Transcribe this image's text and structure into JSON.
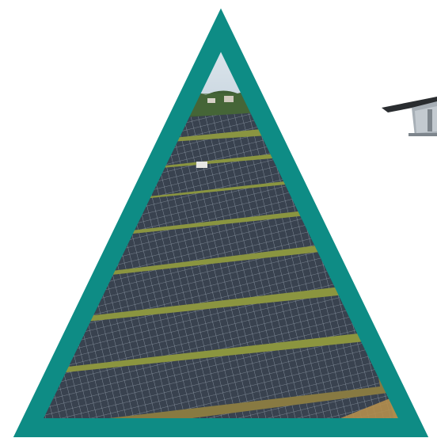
{
  "image": {
    "subject": "solar-farm-aerial",
    "frame_shape": "triangle",
    "frame_color": "#0e8c85",
    "sky_color": "#d9e6ef",
    "panel_color": "#3c4552",
    "grass_color": "#7c8e3a",
    "soil_color": "#b08a4a",
    "bracket_color": "#9aa3ab"
  }
}
